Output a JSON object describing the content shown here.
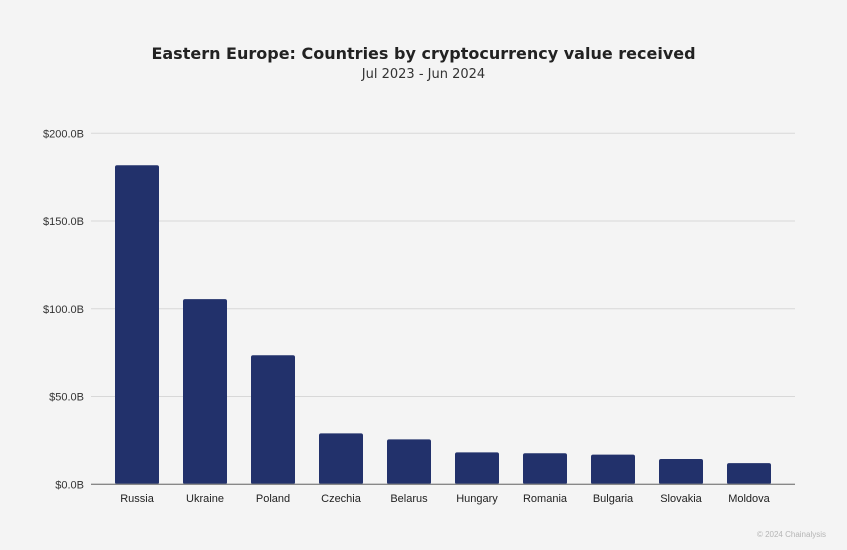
{
  "chart_data": {
    "type": "bar",
    "title": "Eastern Europe: Countries by cryptocurrency value received",
    "subtitle": "Jul 2023 - Jun 2024",
    "categories": [
      "Russia",
      "Ukraine",
      "Poland",
      "Czechia",
      "Belarus",
      "Hungary",
      "Romania",
      "Bulgaria",
      "Slovakia",
      "Moldova"
    ],
    "values": [
      181.8,
      105.5,
      73.5,
      29.0,
      25.6,
      18.2,
      17.7,
      16.9,
      14.4,
      12.1
    ],
    "unit": "USD billions",
    "ylim": [
      0,
      200
    ],
    "yticks": [
      0,
      50,
      100,
      150,
      200
    ],
    "ytick_labels": [
      "$0.0B",
      "$50.0B",
      "$100.0B",
      "$150.0B",
      "$200.0B"
    ],
    "xlabel": "",
    "ylabel": "",
    "grid": true,
    "bar_color": "#22316b"
  },
  "footer": "© 2024 Chainalysis"
}
